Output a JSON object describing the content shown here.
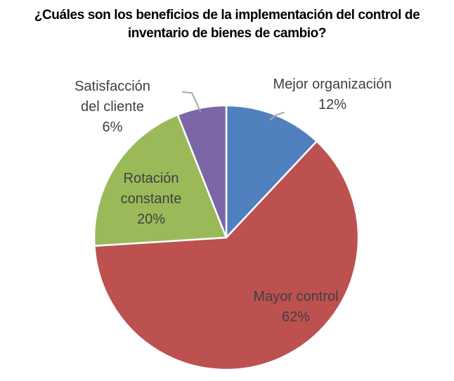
{
  "title_lines": [
    "¿Cuáles son los beneficios de la implementación del control de",
    "inventario de bienes de cambio?"
  ],
  "chart_data": {
    "type": "pie",
    "title": "¿Cuáles son los beneficios de la implementación del control de inventario de bienes de cambio?",
    "direction": "clockwise",
    "start_angle_deg": 0,
    "legend": "none",
    "label_style": "category name with percent, outside for small slices and inside for large slices",
    "slices": [
      {
        "label": "Mejor organización",
        "value": 12,
        "pct_text": "12%",
        "color": "#5081BE"
      },
      {
        "label": "Mayor control",
        "value": 62,
        "pct_text": "62%",
        "color": "#BC5150"
      },
      {
        "label": "Rotación constante",
        "value": 20,
        "pct_text": "20%",
        "color": "#9ABA59"
      },
      {
        "label": "Satisfacción del cliente",
        "value": 6,
        "pct_text": "6%",
        "color": "#7C66A6"
      }
    ],
    "style": {
      "title_color": "#000000",
      "label_color": "#404040",
      "slice_border_color": "#ffffff",
      "leader_line_color": "#A9A9A9",
      "background": "#ffffff"
    }
  }
}
